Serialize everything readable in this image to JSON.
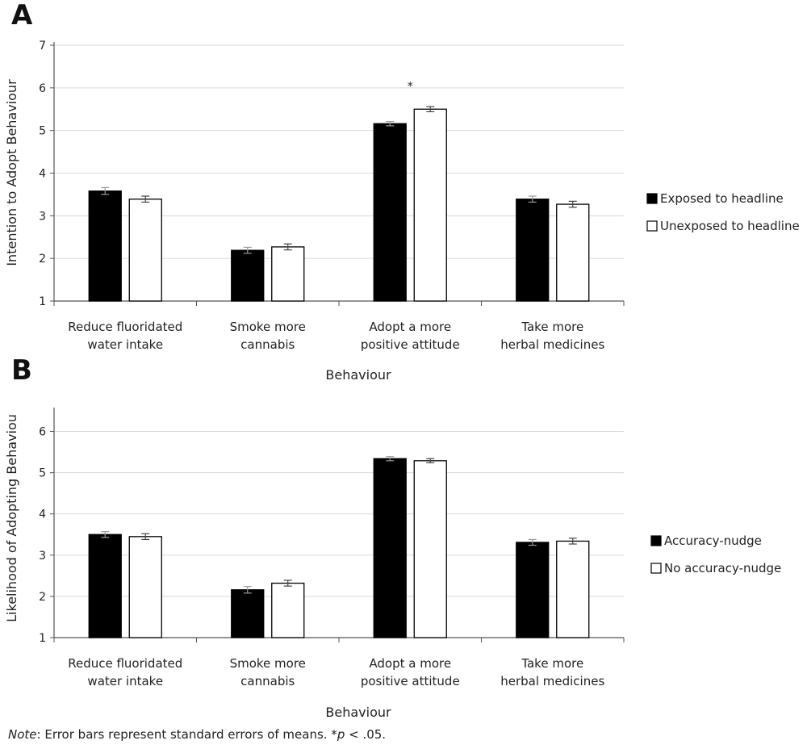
{
  "note": {
    "lead": "Note",
    "text": ": Error bars represent standard errors of means. *",
    "p": "p",
    "tail": " < .05."
  },
  "chart_data": [
    {
      "panel": "A",
      "type": "bar",
      "ylabel": "Intention to Adopt Behaviour",
      "xlabel": "Behaviour",
      "ylim": [
        1,
        7
      ],
      "yticks": [
        1,
        2,
        3,
        4,
        5,
        6,
        7
      ],
      "grid": true,
      "legend_position": "right",
      "categories": [
        [
          "Reduce fluoridated",
          "water intake"
        ],
        [
          "Smoke more",
          "cannabis"
        ],
        [
          "Adopt a more",
          "positive attitude"
        ],
        [
          "Take more",
          "herbal medicines"
        ]
      ],
      "series": [
        {
          "name": "Exposed to headline",
          "color": "#000000",
          "values": [
            3.58,
            2.19,
            5.16,
            3.39
          ],
          "errors": [
            0.08,
            0.07,
            0.05,
            0.07
          ]
        },
        {
          "name": "Unexposed to headline",
          "color": "#ffffff",
          "values": [
            3.39,
            2.27,
            5.5,
            3.27
          ],
          "errors": [
            0.07,
            0.07,
            0.06,
            0.07
          ]
        }
      ],
      "annotations": [
        {
          "text": "*",
          "category": 2
        }
      ]
    },
    {
      "panel": "B",
      "type": "bar",
      "ylabel": "Likelihood of Adopting Behaviou",
      "xlabel": "Behaviour",
      "ylim": [
        1,
        6.5
      ],
      "yticks": [
        1,
        2,
        3,
        4,
        5,
        6
      ],
      "grid": true,
      "legend_position": "right",
      "categories": [
        [
          "Reduce fluoridated",
          "water intake"
        ],
        [
          "Smoke more",
          "cannabis"
        ],
        [
          "Adopt a more",
          "positive attitude"
        ],
        [
          "Take more",
          "herbal medicines"
        ]
      ],
      "series": [
        {
          "name": "Accuracy-nudge",
          "color": "#000000",
          "values": [
            3.5,
            2.16,
            5.34,
            3.31
          ],
          "errors": [
            0.07,
            0.08,
            0.05,
            0.07
          ]
        },
        {
          "name": "No accuracy-nudge",
          "color": "#ffffff",
          "values": [
            3.45,
            2.32,
            5.29,
            3.34
          ],
          "errors": [
            0.07,
            0.07,
            0.05,
            0.07
          ]
        }
      ],
      "annotations": []
    }
  ]
}
